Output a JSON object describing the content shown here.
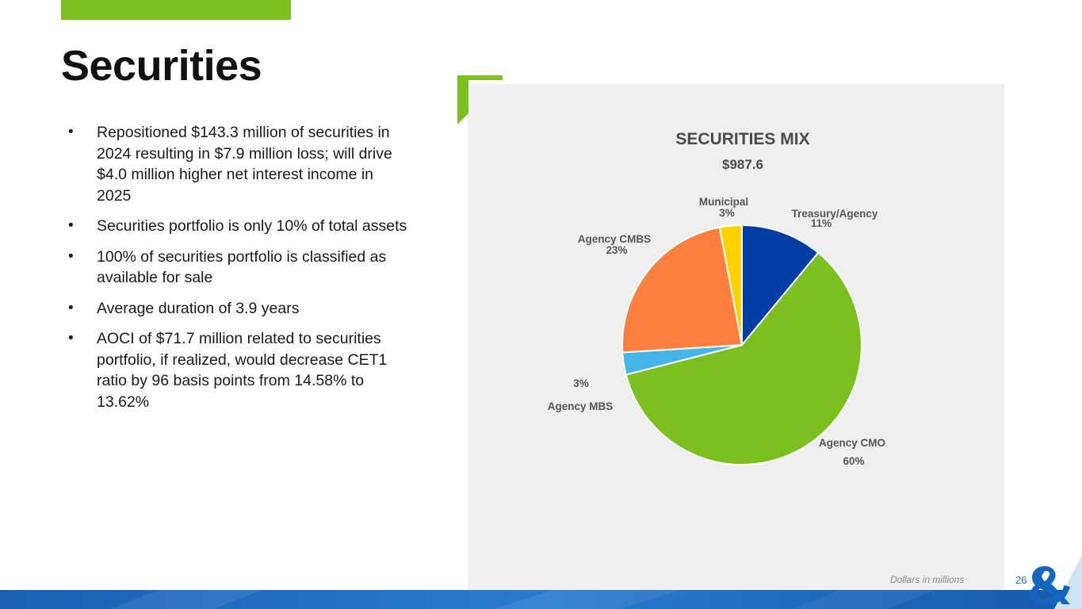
{
  "page": {
    "title": "Securities",
    "bullets": [
      "Repositioned $143.3 million of securities in 2024 resulting in $7.9 million loss; will drive $4.0 million higher net interest income in 2025",
      "Securities portfolio is only 10% of total assets",
      "100% of securities portfolio is classified as available for sale",
      "Average duration of 3.9 years",
      "AOCI of $71.7 million related to securities portfolio, if realized, would decrease CET1 ratio by 96 basis points from 14.58% to 13.62%"
    ],
    "bullet_symbol": "•",
    "footnote": "Dollars in millions",
    "page_number": "26"
  },
  "colors": {
    "accent_green": "#7cc01f",
    "panel_bg": "#efefef",
    "brand_blue": "#1565c0"
  },
  "chart_data": {
    "type": "pie",
    "title": "SECURITIES MIX",
    "subtitle": "$987.6",
    "start": "12 o'clock, clockwise",
    "series": [
      {
        "name": "Treasury/Agency",
        "value": 11,
        "label": "11%",
        "color": "#003da5"
      },
      {
        "name": "Agency CMO",
        "value": 60,
        "label": "60%",
        "color": "#7cc01f"
      },
      {
        "name": "Agency MBS",
        "value": 3,
        "label": "3%",
        "color": "#45b4e6"
      },
      {
        "name": "Agency CMBS",
        "value": 23,
        "label": "23%",
        "color": "#ff7f3e"
      },
      {
        "name": "Municipal",
        "value": 3,
        "label": "3%",
        "color": "#ffd200"
      }
    ]
  }
}
